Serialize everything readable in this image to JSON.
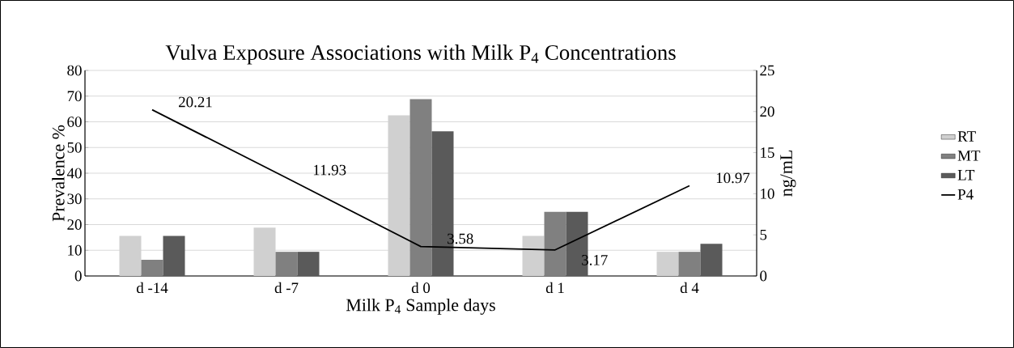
{
  "chart_data": {
    "type": "bar",
    "title": "Vulva Exposure Associations with Milk P$_{4}$ Concentrations",
    "xlabel": "Milk P$_{4}$ Sample days",
    "ylabel": "Prevalence %",
    "y2label": "ng/mL",
    "categories": [
      "d -14",
      "d -7",
      "d 0",
      "d 1",
      "d 4"
    ],
    "series": [
      {
        "name": "RT",
        "color": "#d0d0d0",
        "values": [
          15.6,
          18.8,
          62.5,
          15.6,
          9.4
        ]
      },
      {
        "name": "MT",
        "color": "#808080",
        "values": [
          6.3,
          9.4,
          68.8,
          25,
          9.4
        ]
      },
      {
        "name": "LT",
        "color": "#5a5a5a",
        "values": [
          15.6,
          9.4,
          56.3,
          25,
          12.5
        ]
      },
      {
        "name": "P4",
        "type": "line",
        "axis": "y2",
        "color": "#000000",
        "values": [
          20.21,
          11.93,
          3.58,
          3.17,
          10.97
        ],
        "value_labels": [
          "20.21",
          "11.93",
          "3.58",
          "3.17",
          "10.97"
        ]
      }
    ],
    "ylim": [
      0,
      80
    ],
    "yticks": [
      0,
      10,
      20,
      30,
      40,
      50,
      60,
      70,
      80
    ],
    "y2lim": [
      0,
      25
    ],
    "y2ticks": [
      0,
      5,
      10,
      15,
      20,
      25
    ],
    "grid": "y",
    "legend": "right"
  }
}
